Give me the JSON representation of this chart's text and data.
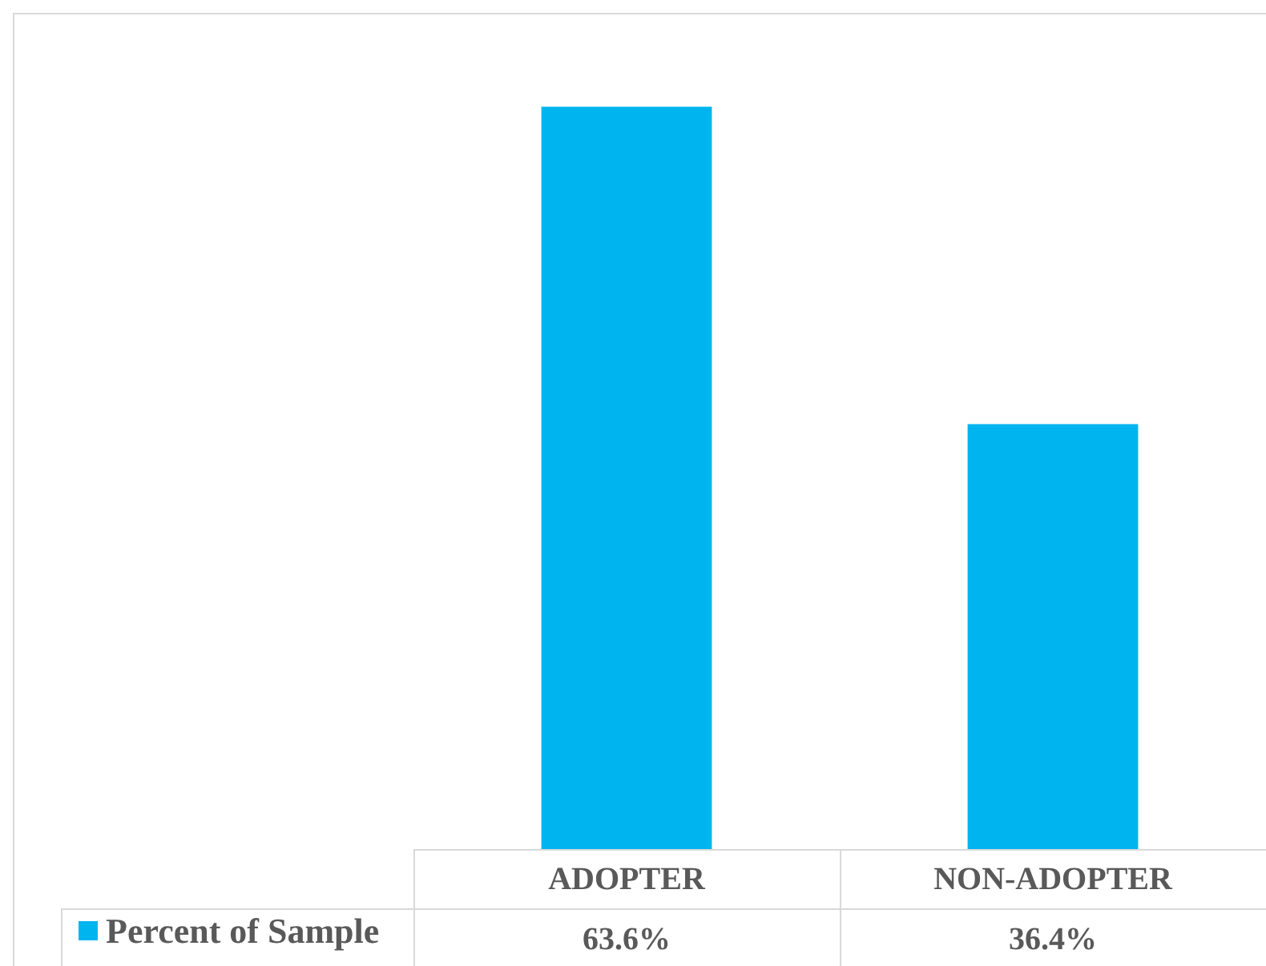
{
  "chart_data": {
    "type": "bar",
    "categories": [
      "ADOPTER",
      "NON-ADOPTER"
    ],
    "series": [
      {
        "name": "Percent of Sample",
        "color": "#00b4f0",
        "values": [
          63.6,
          36.4
        ],
        "value_labels": [
          "63.6%",
          "36.4%"
        ]
      }
    ],
    "legend": "bottom left",
    "grid": false
  }
}
